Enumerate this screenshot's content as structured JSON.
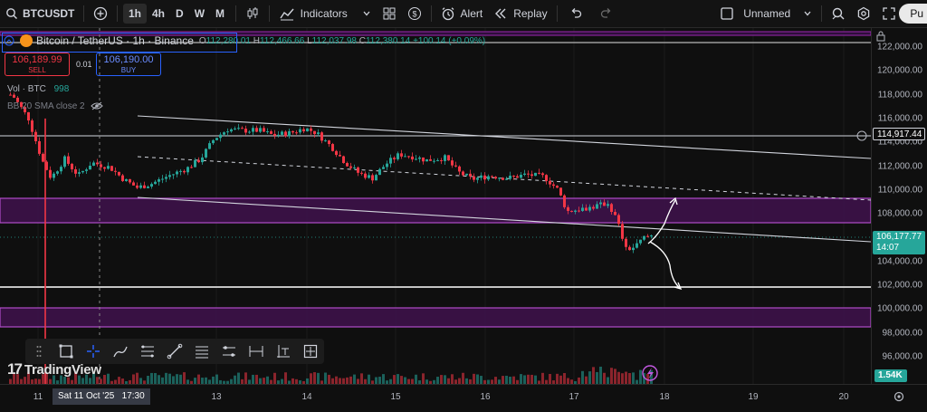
{
  "toolbar": {
    "symbol": "BTCUSDT",
    "intervals": [
      "1h",
      "4h",
      "D",
      "W",
      "M"
    ],
    "active_interval": "1h",
    "indicators_label": "Indicators",
    "alert_label": "Alert",
    "replay_label": "Replay",
    "layout_name": "Unnamed",
    "publish_label": "Pu"
  },
  "legend": {
    "title": "Bitcoin / TetherUS · 1h · Binance",
    "o_key": "O",
    "o_val": "112,280.01",
    "h_key": "H",
    "h_val": "112,466.66",
    "l_key": "L",
    "l_val": "112,037.98",
    "c_key": "C",
    "c_val": "112,380.14",
    "change": "+100.14 (+0.09%)"
  },
  "trade": {
    "sell_price": "106,189.99",
    "sell_label": "SELL",
    "spread": "0.01",
    "buy_price": "106,190.00",
    "buy_label": "BUY"
  },
  "indicators": {
    "vol_label": "Vol · BTC",
    "vol_value": "998",
    "bb_label": "BB 20 SMA close 2"
  },
  "price_axis": {
    "labels": [
      "122,000.00",
      "120,000.00",
      "118,000.00",
      "116,000.00",
      "114,000.00",
      "112,000.00",
      "110,000.00",
      "108,000.00",
      "104,000.00",
      "102,000.00",
      "100,000.00",
      "98,000.00",
      "96,000.00"
    ],
    "level_tag": "114,917.44",
    "last_price": "106,177.77",
    "countdown": "14:07",
    "volume_tag": "1.54K"
  },
  "time_axis": {
    "labels": [
      "11",
      "13",
      "14",
      "15",
      "16",
      "17",
      "18",
      "19",
      "20"
    ],
    "crosshair_label": "Sat 11 Oct '25   17:30"
  },
  "logo_text": "TradingView",
  "colors": {
    "up": "#26a69a",
    "down": "#f23645",
    "zone": "#9c27b0",
    "accent": "#2962ff"
  },
  "icons": [
    "plus-circle-icon",
    "candles-icon",
    "indicators-icon",
    "templates-icon",
    "alert-icon",
    "replay-icon",
    "undo-icon",
    "redo-icon",
    "layout-icon",
    "search-icon",
    "settings-icon",
    "fullscreen-icon",
    "camera-icon"
  ]
}
